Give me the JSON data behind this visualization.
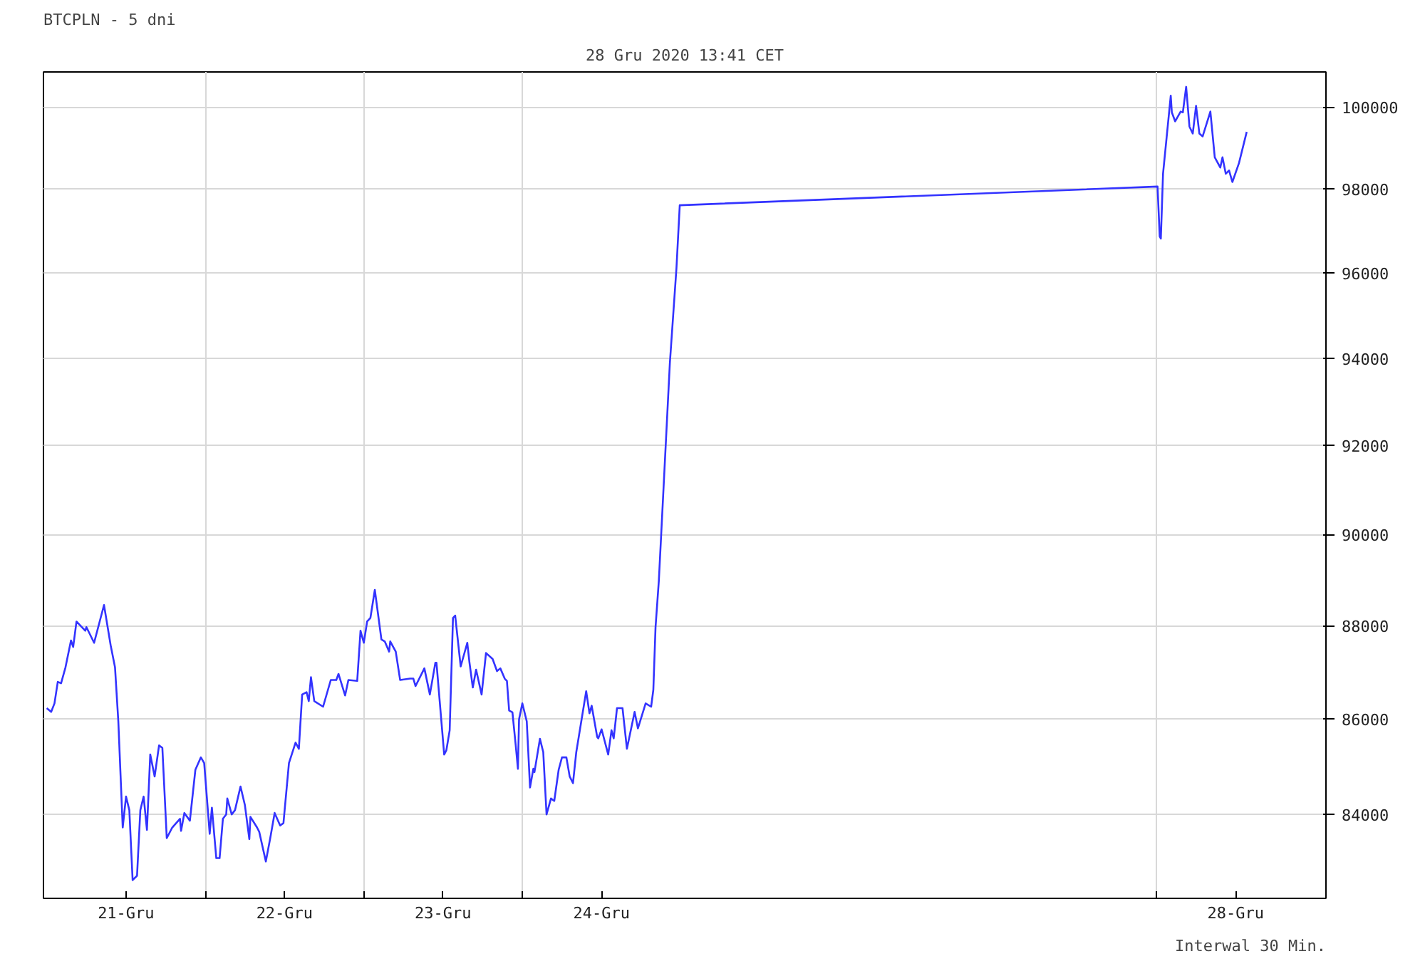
{
  "chart_data": {
    "type": "line",
    "title": "BTCPLN - 5 dni",
    "subtitle": "28 Gru 2020 13:41 CET",
    "annotations": [
      "Interwal 30 Min."
    ],
    "color": "#3333ff",
    "log": "y",
    "grid": true,
    "xlim": [
      "2020-12-20T23:30",
      "2020-12-29T01:40"
    ],
    "xticks": [
      {
        "value": "2020-12-21T12:00",
        "label": "21-Gru"
      },
      {
        "value": "2020-12-22T00:00",
        "label": null
      },
      {
        "value": "2020-12-22T12:00",
        "label": "22-Gru"
      },
      {
        "value": "2020-12-23T00:00",
        "label": null
      },
      {
        "value": "2020-12-23T12:00",
        "label": "23-Gru"
      },
      {
        "value": "2020-12-24T00:00",
        "label": null
      },
      {
        "value": "2020-12-24T12:00",
        "label": "24-Gru"
      },
      {
        "value": "2020-12-28T00:00",
        "label": null
      },
      {
        "value": "2020-12-28T12:00",
        "label": "28-Gru"
      }
    ],
    "ylim": [
      82280,
      100870
    ],
    "yticks": [
      84000,
      86000,
      88000,
      90000,
      92000,
      94000,
      96000,
      98000,
      100000
    ],
    "x": [
      "2020-12-21T00:00",
      "2020-12-21T00:40",
      "2020-12-21T01:10",
      "2020-12-21T01:40",
      "2020-12-21T02:10",
      "2020-12-21T02:50",
      "2020-12-21T03:40",
      "2020-12-21T04:00",
      "2020-12-21T04:30",
      "2020-12-21T05:50",
      "2020-12-21T06:00",
      "2020-12-21T07:10",
      "2020-12-21T08:40",
      "2020-12-21T09:40",
      "2020-12-21T10:20",
      "2020-12-21T10:50",
      "2020-12-21T11:30",
      "2020-12-21T12:00",
      "2020-12-21T12:30",
      "2020-12-21T13:00",
      "2020-12-21T13:40",
      "2020-12-21T14:10",
      "2020-12-21T14:40",
      "2020-12-21T15:10",
      "2020-12-21T15:40",
      "2020-12-21T16:20",
      "2020-12-21T17:00",
      "2020-12-21T17:30",
      "2020-12-21T18:10",
      "2020-12-21T19:00",
      "2020-12-21T20:10",
      "2020-12-21T20:20",
      "2020-12-21T20:50",
      "2020-12-21T21:40",
      "2020-12-21T22:30",
      "2020-12-21T23:20",
      "2020-12-21T23:50",
      "2020-12-22T00:40",
      "2020-12-22T01:00",
      "2020-12-22T01:40",
      "2020-12-22T02:10",
      "2020-12-22T02:40",
      "2020-12-22T03:10",
      "2020-12-22T03:20",
      "2020-12-22T04:00",
      "2020-12-22T04:30",
      "2020-12-22T05:20",
      "2020-12-22T06:00",
      "2020-12-22T06:40",
      "2020-12-22T06:50",
      "2020-12-22T07:50",
      "2020-12-22T08:10",
      "2020-12-22T09:10",
      "2020-12-22T09:50",
      "2020-12-22T10:30",
      "2020-12-22T11:20",
      "2020-12-22T11:50",
      "2020-12-22T12:40",
      "2020-12-22T13:40",
      "2020-12-22T14:10",
      "2020-12-22T14:40",
      "2020-12-22T15:20",
      "2020-12-22T15:40",
      "2020-12-22T16:00",
      "2020-12-22T16:30",
      "2020-12-22T17:50",
      "2020-12-22T19:00",
      "2020-12-22T19:50",
      "2020-12-22T20:10",
      "2020-12-22T21:10",
      "2020-12-22T21:40",
      "2020-12-22T23:00",
      "2020-12-22T23:30",
      "2020-12-23T00:00",
      "2020-12-23T00:30",
      "2020-12-23T01:00",
      "2020-12-23T01:40",
      "2020-12-23T02:40",
      "2020-12-23T03:10",
      "2020-12-23T03:50",
      "2020-12-23T04:00",
      "2020-12-23T04:50",
      "2020-12-23T05:30",
      "2020-12-23T07:00",
      "2020-12-23T07:30",
      "2020-12-23T07:50",
      "2020-12-23T09:10",
      "2020-12-23T10:00",
      "2020-12-23T10:50",
      "2020-12-23T11:00",
      "2020-12-23T12:10",
      "2020-12-23T12:30",
      "2020-12-23T13:00",
      "2020-12-23T13:30",
      "2020-12-23T13:50",
      "2020-12-23T14:40",
      "2020-12-23T15:40",
      "2020-12-23T16:00",
      "2020-12-23T16:30",
      "2020-12-23T17:00",
      "2020-12-23T17:50",
      "2020-12-23T18:30",
      "2020-12-23T19:30",
      "2020-12-23T20:10",
      "2020-12-23T20:40",
      "2020-12-23T21:20",
      "2020-12-23T21:40",
      "2020-12-23T22:00",
      "2020-12-23T22:30",
      "2020-12-23T23:00",
      "2020-12-23T23:20",
      "2020-12-23T23:30",
      "2020-12-24T00:00",
      "2020-12-24T00:40",
      "2020-12-24T01:10",
      "2020-12-24T01:40",
      "2020-12-24T01:50",
      "2020-12-24T02:40",
      "2020-12-24T03:10",
      "2020-12-24T03:40",
      "2020-12-24T04:20",
      "2020-12-24T04:50",
      "2020-12-24T05:30",
      "2020-12-24T06:00",
      "2020-12-24T06:40",
      "2020-12-24T07:10",
      "2020-12-24T07:40",
      "2020-12-24T08:10",
      "2020-12-24T09:40",
      "2020-12-24T10:10",
      "2020-12-24T10:30",
      "2020-12-24T11:20",
      "2020-12-24T11:30",
      "2020-12-24T12:00",
      "2020-12-24T13:00",
      "2020-12-24T13:30",
      "2020-12-24T13:50",
      "2020-12-24T14:20",
      "2020-12-24T15:10",
      "2020-12-24T15:50",
      "2020-12-24T17:00",
      "2020-12-24T17:30",
      "2020-12-24T18:40",
      "2020-12-24T19:30",
      "2020-12-24T19:50",
      "2020-12-24T20:10",
      "2020-12-24T20:40",
      "2020-12-24T22:20",
      "2020-12-24T23:20",
      "2020-12-24T23:50",
      "2020-12-28T00:10",
      "2020-12-28T00:30",
      "2020-12-28T00:40",
      "2020-12-28T01:00",
      "2020-12-28T02:10",
      "2020-12-28T02:20",
      "2020-12-28T02:50",
      "2020-12-28T03:40",
      "2020-12-28T04:00",
      "2020-12-28T04:30",
      "2020-12-28T05:00",
      "2020-12-28T05:30",
      "2020-12-28T06:00",
      "2020-12-28T06:30",
      "2020-12-28T07:00",
      "2020-12-28T08:10",
      "2020-12-28T08:50",
      "2020-12-28T09:40",
      "2020-12-28T10:00",
      "2020-12-28T10:30",
      "2020-12-28T11:00",
      "2020-12-28T11:30",
      "2020-12-28T12:30",
      "2020-12-28T13:40"
    ],
    "values": [
      86230,
      86150,
      86330,
      86790,
      86760,
      87100,
      87680,
      87540,
      88090,
      87890,
      87970,
      87630,
      88450,
      87580,
      87100,
      85950,
      83730,
      84370,
      84090,
      82650,
      82740,
      84090,
      84370,
      83680,
      85250,
      84790,
      85440,
      85390,
      83510,
      83730,
      83910,
      83660,
      84030,
      83870,
      84930,
      85190,
      85070,
      83600,
      84140,
      83100,
      83100,
      83910,
      84000,
      84330,
      84000,
      84090,
      84580,
      84190,
      83490,
      83950,
      83730,
      83640,
      83030,
      83510,
      84030,
      83770,
      83820,
      85070,
      85500,
      85370,
      86520,
      86570,
      86380,
      86890,
      86380,
      86260,
      86830,
      86830,
      86960,
      86500,
      86830,
      86810,
      87890,
      87630,
      88090,
      88170,
      88780,
      87700,
      87660,
      87440,
      87660,
      87440,
      86830,
      86860,
      86860,
      86700,
      87080,
      86520,
      87200,
      87200,
      85250,
      85340,
      85760,
      88170,
      88220,
      87120,
      87630,
      87200,
      86670,
      87050,
      86520,
      87410,
      87280,
      87020,
      87080,
      86860,
      86810,
      86180,
      86140,
      85440,
      84950,
      85990,
      86330,
      85950,
      84560,
      84950,
      84880,
      85580,
      85300,
      84000,
      84330,
      84280,
      84930,
      85190,
      85190,
      84790,
      84650,
      85300,
      86590,
      86120,
      86280,
      85620,
      85590,
      85780,
      85250,
      85760,
      85590,
      86230,
      86230,
      85370,
      86150,
      85800,
      86330,
      86260,
      86620,
      87970,
      88980,
      93880,
      96110,
      97610,
      98060,
      96860,
      96810,
      98370,
      100280,
      99870,
      99650,
      99890,
      99870,
      100500,
      99520,
      99350,
      100030,
      99350,
      99280,
      99890,
      98770,
      98520,
      98770,
      98370,
      98450,
      98170,
      98630,
      99390
    ]
  }
}
